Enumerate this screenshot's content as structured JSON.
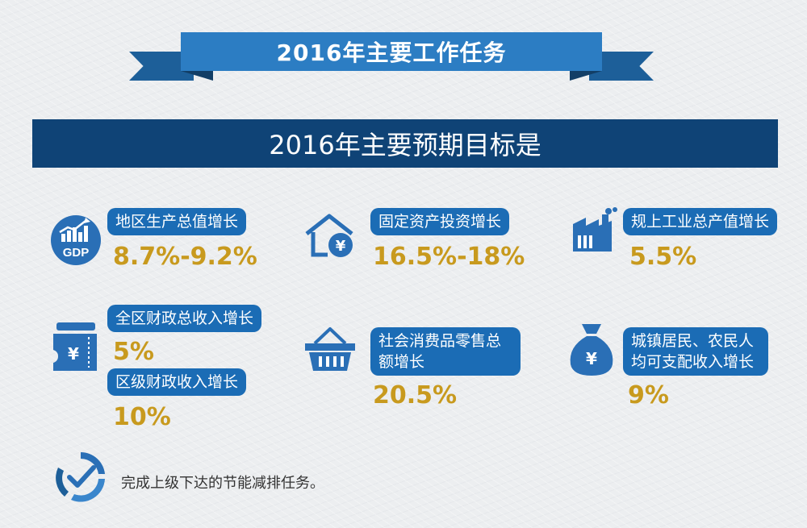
{
  "ribbon": {
    "title": "2016年主要工作任务"
  },
  "header": {
    "title": "2016年主要预期目标是"
  },
  "items": {
    "gdp": {
      "label": "地区生产总值增长",
      "value": "8.7%-9.2%",
      "icon_text": "GDP"
    },
    "fixed_assets": {
      "label": "固定资产投资增长",
      "value": "16.5%-18%",
      "icon_text": "¥"
    },
    "industry": {
      "label": "规上工业总产值增长",
      "value": "5.5%"
    },
    "fiscal_total": {
      "label": "全区财政总收入增长",
      "value": "5%",
      "icon_text": "¥"
    },
    "fiscal_district": {
      "label": "区级财政收入增长",
      "value": "10%"
    },
    "retail": {
      "label": "社会消费品零售总额增长",
      "value": "20.5%"
    },
    "income": {
      "label": "城镇居民、农民人均可支配收入增长",
      "value": "9%",
      "icon_text": "¥"
    }
  },
  "footer": {
    "text": "完成上级下达的节能减排任务。"
  },
  "colors": {
    "ribbon": "#2c7dc3",
    "header": "#0f4376",
    "pill": "#1b6cb5",
    "value": "#c89a1e",
    "icon": "#2a6fb6"
  }
}
